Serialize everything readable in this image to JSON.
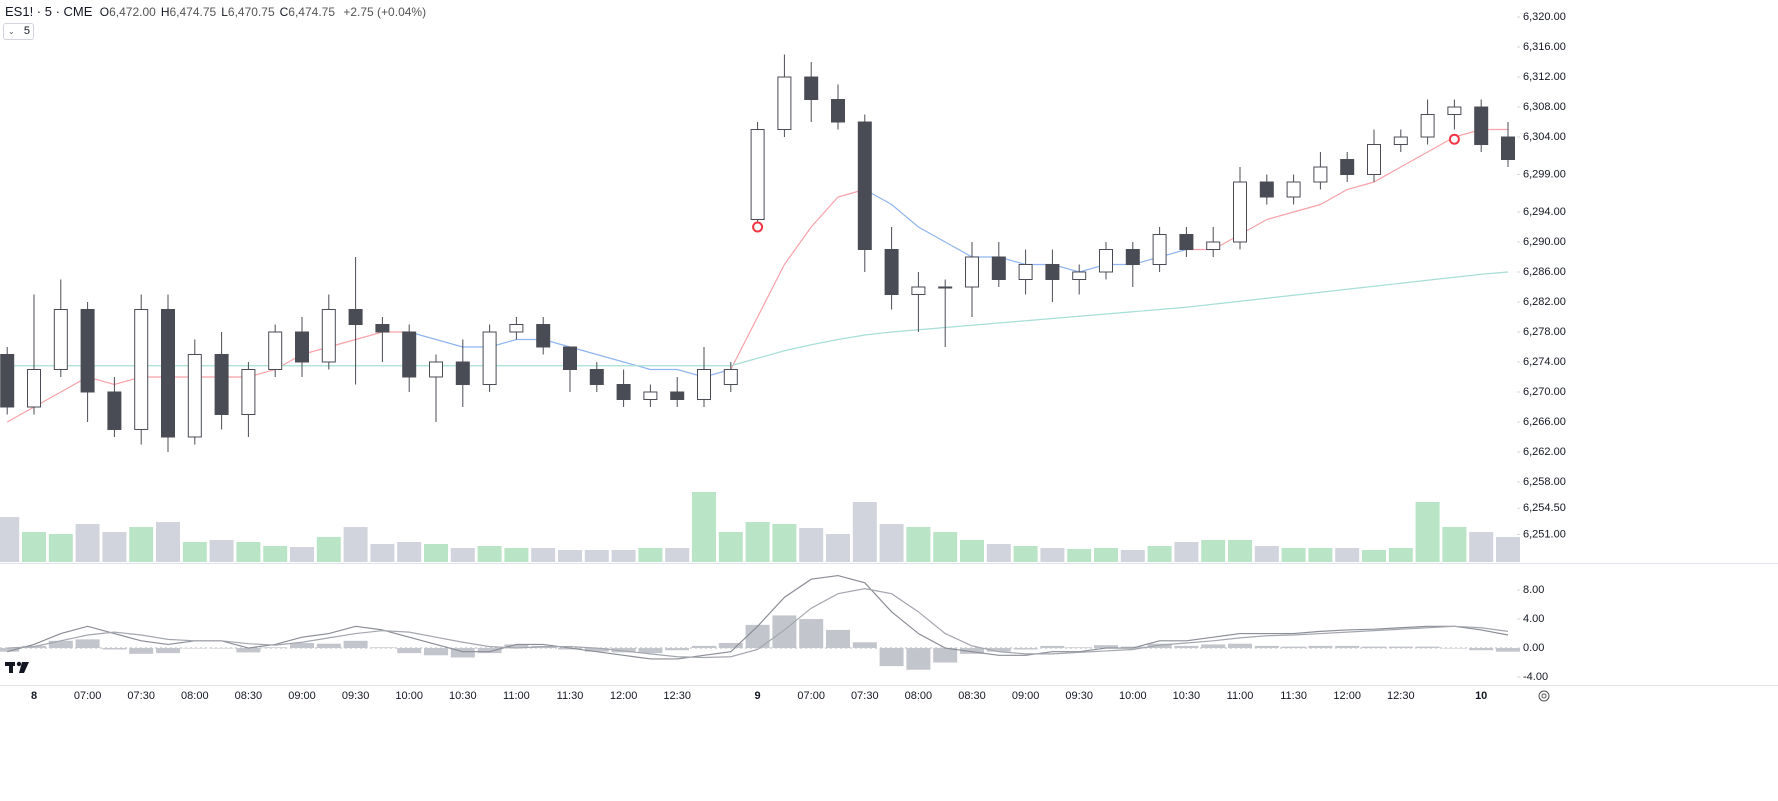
{
  "header": {
    "symbol": "ES1! · 5 · CME",
    "fields": [
      {
        "label": "O",
        "value": "6,472.00"
      },
      {
        "label": "H",
        "value": "6,474.75"
      },
      {
        "label": "L",
        "value": "6,470.75"
      },
      {
        "label": "C",
        "value": "6,474.75"
      }
    ],
    "change": "+2.75 (+0.04%)",
    "interval": "5"
  },
  "chart_data": {
    "type": "candlestick",
    "categories": [
      null,
      "8",
      null,
      "07:00",
      null,
      "07:30",
      null,
      "08:00",
      null,
      "08:30",
      null,
      "09:00",
      null,
      "09:30",
      null,
      "10:00",
      null,
      "10:30",
      null,
      "11:00",
      null,
      "11:30",
      null,
      "12:00",
      null,
      "12:30",
      null,
      null,
      "9",
      null,
      "07:00",
      null,
      "07:30",
      null,
      "08:00",
      null,
      "08:30",
      null,
      "09:00",
      null,
      "09:30",
      null,
      "10:00",
      null,
      "10:30",
      null,
      "11:00",
      null,
      "11:30",
      null,
      "12:00",
      null,
      "12:30",
      null,
      null,
      "10",
      null
    ],
    "ohlc": [
      [
        6275,
        6276,
        6267,
        6268
      ],
      [
        6268,
        6283,
        6267,
        6273
      ],
      [
        6273,
        6285,
        6272,
        6281
      ],
      [
        6281,
        6282,
        6266,
        6270
      ],
      [
        6270,
        6272,
        6264,
        6265
      ],
      [
        6265,
        6283,
        6263,
        6281
      ],
      [
        6281,
        6283,
        6262,
        6264
      ],
      [
        6264,
        6277,
        6263,
        6275
      ],
      [
        6275,
        6278,
        6265,
        6267
      ],
      [
        6267,
        6274,
        6264,
        6273
      ],
      [
        6273,
        6279,
        6272,
        6278
      ],
      [
        6278,
        6280,
        6272,
        6274
      ],
      [
        6274,
        6283,
        6273,
        6281
      ],
      [
        6281,
        6288,
        6271,
        6279
      ],
      [
        6279,
        6280,
        6274,
        6278
      ],
      [
        6278,
        6279,
        6270,
        6272
      ],
      [
        6272,
        6275,
        6266,
        6274
      ],
      [
        6274,
        6277,
        6268,
        6271
      ],
      [
        6271,
        6279,
        6270,
        6278
      ],
      [
        6278,
        6280,
        6277,
        6279
      ],
      [
        6279,
        6280,
        6275,
        6276
      ],
      [
        6276,
        6276,
        6270,
        6273
      ],
      [
        6273,
        6274,
        6270,
        6271
      ],
      [
        6271,
        6273,
        6268,
        6269
      ],
      [
        6269,
        6271,
        6268,
        6270
      ],
      [
        6270,
        6272,
        6268,
        6269
      ],
      [
        6269,
        6276,
        6268,
        6273
      ],
      [
        6271,
        6274,
        6270,
        6273
      ],
      [
        6293,
        6306,
        6292,
        6305
      ],
      [
        6305,
        6315,
        6304,
        6312
      ],
      [
        6312,
        6314,
        6306,
        6309
      ],
      [
        6309,
        6311,
        6305,
        6306
      ],
      [
        6306,
        6307,
        6286,
        6289
      ],
      [
        6289,
        6292,
        6281,
        6283
      ],
      [
        6283,
        6286,
        6278,
        6284
      ],
      [
        6284,
        6285,
        6276,
        6284
      ],
      [
        6284,
        6290,
        6280,
        6288
      ],
      [
        6288,
        6290,
        6284,
        6285
      ],
      [
        6285,
        6289,
        6283,
        6287
      ],
      [
        6287,
        6289,
        6282,
        6285
      ],
      [
        6285,
        6287,
        6283,
        6286
      ],
      [
        6286,
        6290,
        6285,
        6289
      ],
      [
        6289,
        6290,
        6284,
        6287
      ],
      [
        6287,
        6292,
        6286,
        6291
      ],
      [
        6291,
        6292,
        6288,
        6289
      ],
      [
        6289,
        6292,
        6288,
        6290
      ],
      [
        6290,
        6300,
        6289,
        6298
      ],
      [
        6298,
        6299,
        6295,
        6296
      ],
      [
        6296,
        6299,
        6295,
        6298
      ],
      [
        6298,
        6302,
        6297,
        6300
      ],
      [
        6301,
        6302,
        6298,
        6299
      ],
      [
        6299,
        6305,
        6298,
        6303
      ],
      [
        6303,
        6305,
        6302,
        6304
      ],
      [
        6304,
        6309,
        6303,
        6307
      ],
      [
        6307,
        6309,
        6305,
        6308
      ],
      [
        6308,
        6309,
        6302,
        6303
      ],
      [
        6304,
        6306,
        6300,
        6301
      ]
    ],
    "up_color": "#ffffff",
    "down_color": "#4a4c55",
    "border_color": "#4a4c55",
    "ylim": [
      6247.33,
      6322.27
    ],
    "yticks": [
      {
        "value": 6320,
        "label": "6,320.00"
      },
      {
        "value": 6316,
        "label": "6,316.00"
      },
      {
        "value": 6312,
        "label": "6,312.00"
      },
      {
        "value": 6308,
        "label": "6,308.00"
      },
      {
        "value": 6304,
        "label": "6,304.00"
      },
      {
        "value": 6299,
        "label": "6,299.00"
      },
      {
        "value": 6294,
        "label": "6,294.00"
      },
      {
        "value": 6290,
        "label": "6,290.00"
      },
      {
        "value": 6286,
        "label": "6,286.00"
      },
      {
        "value": 6282,
        "label": "6,282.00"
      },
      {
        "value": 6278,
        "label": "6,278.00"
      },
      {
        "value": 6274,
        "label": "6,274.00"
      },
      {
        "value": 6270,
        "label": "6,270.00"
      },
      {
        "value": 6266,
        "label": "6,266.00"
      },
      {
        "value": 6262,
        "label": "6,262.00"
      },
      {
        "value": 6258,
        "label": "6,258.00"
      },
      {
        "value": 6254.5,
        "label": "6,254.50"
      },
      {
        "value": 6251,
        "label": "6,251.00"
      }
    ],
    "overlays": [
      {
        "color": "#f7a1a8",
        "values": [
          6266,
          6268,
          6270,
          6272,
          6271,
          6272,
          6272,
          6272,
          6272,
          6272,
          6273,
          6275,
          6276,
          6277,
          6278,
          6278,
          null,
          null,
          null,
          null,
          null,
          null,
          null,
          null,
          null,
          null,
          null,
          6273,
          6280,
          6287,
          6292,
          6296,
          6297,
          null,
          null,
          null,
          null,
          null,
          null,
          null,
          null,
          null,
          null,
          null,
          6289,
          6289,
          6291,
          6293,
          6294,
          6295,
          6297,
          6298,
          6300,
          6302,
          6304,
          6305,
          6305
        ]
      },
      {
        "color": "#90b4f0",
        "values": [
          null,
          null,
          null,
          null,
          null,
          null,
          null,
          null,
          null,
          null,
          null,
          null,
          null,
          null,
          null,
          6278,
          6277,
          6276,
          6276,
          6277,
          6277,
          6276,
          6275,
          6274,
          6273,
          6273,
          6272,
          6273,
          null,
          null,
          null,
          null,
          6297,
          6295,
          6292,
          6290,
          6288,
          6288,
          6287,
          6287,
          6286,
          6287,
          6287,
          6288,
          6289,
          null,
          null,
          null,
          null,
          null,
          null,
          null,
          null,
          null,
          null,
          null,
          null
        ]
      },
      {
        "color": "#a8ded8",
        "values": [
          6273.5,
          6273.5,
          6273.5,
          6273.5,
          6273.5,
          6273.5,
          6273.5,
          6273.5,
          6273.5,
          6273.5,
          6273.5,
          6273.5,
          6273.5,
          6273.5,
          6273.5,
          6273.5,
          6273.5,
          6273.5,
          6273.5,
          6273.5,
          6273.5,
          6273.5,
          6273.5,
          6273.5,
          6273.5,
          6273.5,
          6273.5,
          6273.5,
          6274.5,
          6275.5,
          6276.3,
          6277,
          6277.6,
          6278,
          6278.3,
          6278.6,
          6278.9,
          6279.2,
          6279.5,
          6279.8,
          6280.1,
          6280.4,
          6280.7,
          6281,
          6281.3,
          6281.7,
          6282.1,
          6282.5,
          6282.9,
          6283.3,
          6283.7,
          6284.1,
          6284.5,
          6284.9,
          6285.3,
          6285.7,
          6286
        ]
      }
    ],
    "signals": {
      "color": "#f23645",
      "values": [
        null,
        null,
        null,
        null,
        null,
        null,
        null,
        null,
        null,
        null,
        null,
        null,
        null,
        null,
        null,
        null,
        null,
        null,
        null,
        null,
        null,
        null,
        null,
        null,
        null,
        null,
        null,
        null,
        6292,
        null,
        null,
        null,
        null,
        null,
        null,
        null,
        null,
        null,
        null,
        null,
        null,
        null,
        null,
        null,
        null,
        null,
        null,
        null,
        null,
        null,
        null,
        null,
        null,
        null,
        6303.7,
        null,
        null
      ]
    },
    "volume": {
      "up_color": "#b9e4c6",
      "down_color": "#d1d4dc",
      "ylim": [
        0,
        140
      ],
      "values": [
        45,
        30,
        28,
        38,
        30,
        35,
        40,
        20,
        22,
        20,
        16,
        15,
        25,
        35,
        18,
        20,
        18,
        14,
        16,
        14,
        14,
        12,
        12,
        12,
        14,
        14,
        70,
        30,
        40,
        38,
        34,
        28,
        60,
        38,
        35,
        30,
        22,
        18,
        16,
        14,
        13,
        14,
        12,
        16,
        20,
        22,
        22,
        16,
        14,
        14,
        14,
        12,
        14,
        60,
        35,
        30,
        25
      ]
    },
    "macd": {
      "ylim": [
        -5.1,
        11.6
      ],
      "yticks": [
        {
          "value": 8,
          "label": "8.00"
        },
        {
          "value": 4,
          "label": "4.00"
        },
        {
          "value": 0,
          "label": "0.00"
        },
        {
          "value": -4,
          "label": "-4.00"
        }
      ],
      "lines": [
        {
          "color": "#8a8d96",
          "values": [
            -0.5,
            0.5,
            2,
            3,
            2,
            1,
            0.5,
            1,
            1,
            0,
            0.5,
            1.5,
            2,
            3,
            2.5,
            1.5,
            0.5,
            -0.5,
            -0.5,
            0.5,
            0.5,
            0,
            -0.5,
            -1,
            -1.5,
            -1.5,
            -1,
            -0.5,
            3,
            7,
            9.5,
            10,
            9,
            5,
            2,
            0,
            -0.5,
            -1,
            -1,
            -0.5,
            -0.5,
            0,
            0,
            1,
            1,
            1.5,
            2,
            2,
            2,
            2.3,
            2.5,
            2.6,
            2.8,
            3,
            3,
            2.5,
            1.8
          ]
        },
        {
          "color": "#a3a6ae",
          "values": [
            0,
            0.2,
            1,
            1.8,
            2.2,
            1.8,
            1.2,
            1,
            1,
            0.6,
            0.4,
            0.8,
            1.4,
            2,
            2.4,
            2.2,
            1.5,
            0.8,
            0.2,
            0,
            0.2,
            0.2,
            0,
            -0.4,
            -0.8,
            -1.2,
            -1.3,
            -1.2,
            -0.2,
            2.5,
            5.5,
            7.5,
            8.2,
            7.5,
            5,
            2,
            0.3,
            -0.5,
            -0.8,
            -0.8,
            -0.6,
            -0.4,
            -0.2,
            0.4,
            0.7,
            1,
            1.4,
            1.7,
            1.8,
            2,
            2.2,
            2.4,
            2.6,
            2.8,
            3,
            2.8,
            2.3
          ]
        }
      ],
      "histogram": {
        "color": "#c3c5cc",
        "values": [
          -0.5,
          0.3,
          1,
          1.2,
          -0.2,
          -0.8,
          -0.7,
          0,
          0,
          -0.6,
          0.1,
          0.7,
          0.6,
          1,
          0.1,
          -0.7,
          -1,
          -1.3,
          -0.7,
          0.5,
          0.3,
          -0.2,
          -0.5,
          -0.6,
          -0.7,
          -0.3,
          0.3,
          0.7,
          3.2,
          4.5,
          4,
          2.5,
          0.8,
          -2.5,
          -3,
          -2,
          -0.8,
          -0.5,
          -0.2,
          0.3,
          0.1,
          0.4,
          0.2,
          0.6,
          0.3,
          0.5,
          0.6,
          0.3,
          0.2,
          0.3,
          0.3,
          0.2,
          0.2,
          0.2,
          0,
          -0.3,
          -0.5
        ]
      }
    }
  }
}
